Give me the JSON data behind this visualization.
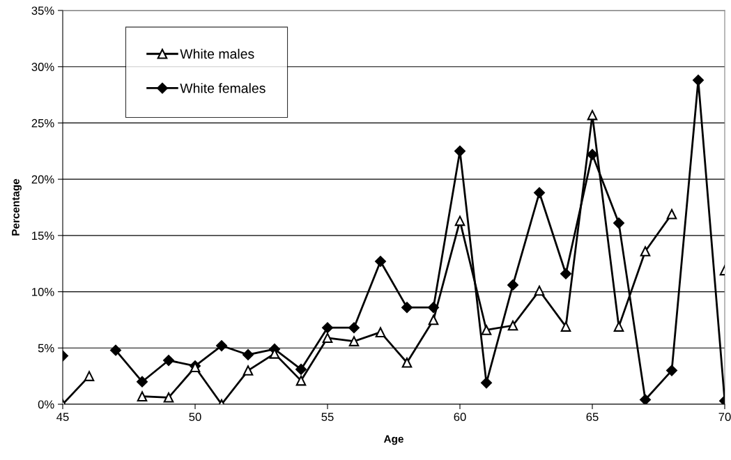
{
  "chart_data": {
    "type": "line",
    "xlabel": "Age",
    "ylabel": "Percentage",
    "x": [
      45,
      46,
      47,
      48,
      49,
      50,
      51,
      52,
      53,
      54,
      55,
      56,
      57,
      58,
      59,
      60,
      61,
      62,
      63,
      64,
      65,
      66,
      67,
      68,
      69,
      70
    ],
    "series": [
      {
        "name": "White males",
        "color": "#000000",
        "marker": "triangle",
        "values": [
          0.0,
          2.5,
          null,
          0.7,
          0.6,
          3.3,
          0.0,
          3.0,
          4.5,
          2.1,
          5.9,
          5.6,
          6.4,
          3.7,
          7.5,
          16.3,
          6.6,
          7.0,
          10.1,
          6.9,
          25.7,
          6.9,
          13.6,
          16.9,
          null,
          11.9
        ]
      },
      {
        "name": "White females",
        "color": "#000000",
        "marker": "diamond",
        "values": [
          4.3,
          null,
          4.8,
          2.0,
          3.9,
          3.4,
          5.2,
          4.4,
          4.9,
          3.1,
          6.8,
          6.8,
          12.7,
          8.6,
          8.6,
          22.5,
          1.9,
          10.6,
          18.8,
          11.6,
          22.2,
          16.1,
          0.4,
          3.0,
          28.8,
          0.3
        ]
      }
    ],
    "xlim": [
      45,
      70
    ],
    "ylim": [
      0,
      35
    ],
    "xticks": [
      45,
      50,
      55,
      60,
      65,
      70
    ],
    "yticks": [
      {
        "value": 0,
        "label": "0%"
      },
      {
        "value": 5,
        "label": "5%"
      },
      {
        "value": 10,
        "label": "10%"
      },
      {
        "value": 15,
        "label": "15%"
      },
      {
        "value": 20,
        "label": "20%"
      },
      {
        "value": 25,
        "label": "25%"
      },
      {
        "value": 30,
        "label": "30%"
      },
      {
        "value": 35,
        "label": "35%"
      }
    ],
    "grid": "y",
    "legend": "top left",
    "line_style": "solid"
  }
}
